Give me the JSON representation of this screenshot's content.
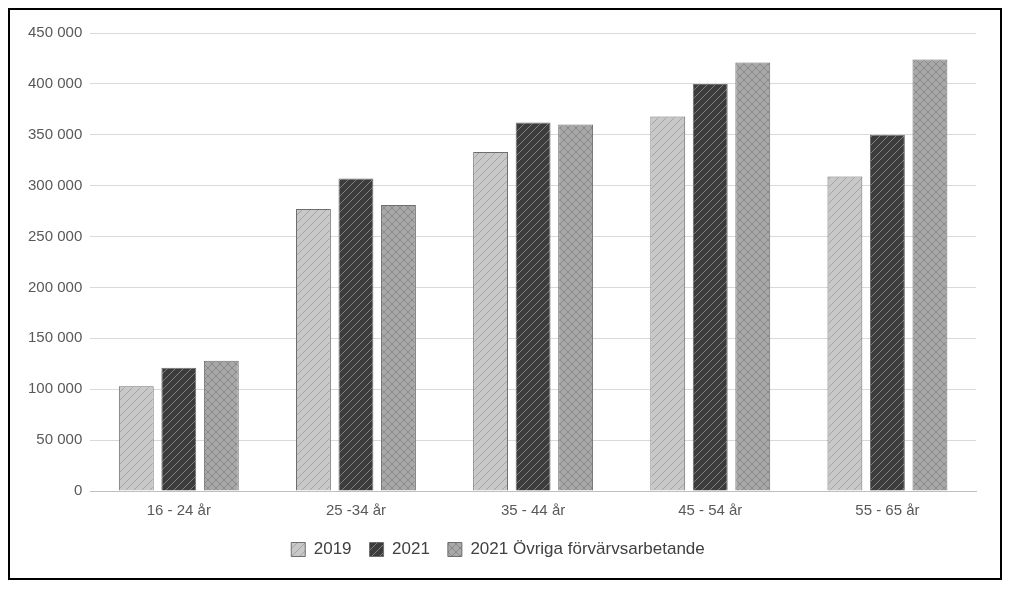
{
  "chart_data": {
    "type": "bar",
    "categories": [
      "16 - 24 år",
      "25 -34 år",
      "35 - 44 år",
      "45 - 54 år",
      "55 - 65 år"
    ],
    "series": [
      {
        "name": "2019",
        "color": "#c8c8c8",
        "values": [
          103000,
          277000,
          333000,
          368000,
          309000
        ]
      },
      {
        "name": "2021",
        "color": "#3c3c3c",
        "values": [
          121000,
          307000,
          362000,
          400000,
          350000
        ]
      },
      {
        "name": "2021 Övriga förvärvsarbetande",
        "color": "#a8a8a8",
        "values": [
          128000,
          281000,
          360000,
          421000,
          424000
        ]
      }
    ],
    "ylim": [
      0,
      450000
    ],
    "yticks": [
      0,
      {
        "value": 50000,
        "label": "50 000"
      },
      {
        "value": 100000,
        "label": "100 000"
      },
      {
        "value": 150000,
        "label": "150 000"
      },
      {
        "value": 200000,
        "label": "200 000"
      },
      {
        "value": 250000,
        "label": "250 000"
      },
      {
        "value": 300000,
        "label": "300 000"
      },
      {
        "value": 350000,
        "label": "350 000"
      },
      {
        "value": 400000,
        "label": "400 000"
      },
      {
        "value": 450000,
        "label": "450 000"
      }
    ],
    "grid": true,
    "legend": "bottom"
  }
}
